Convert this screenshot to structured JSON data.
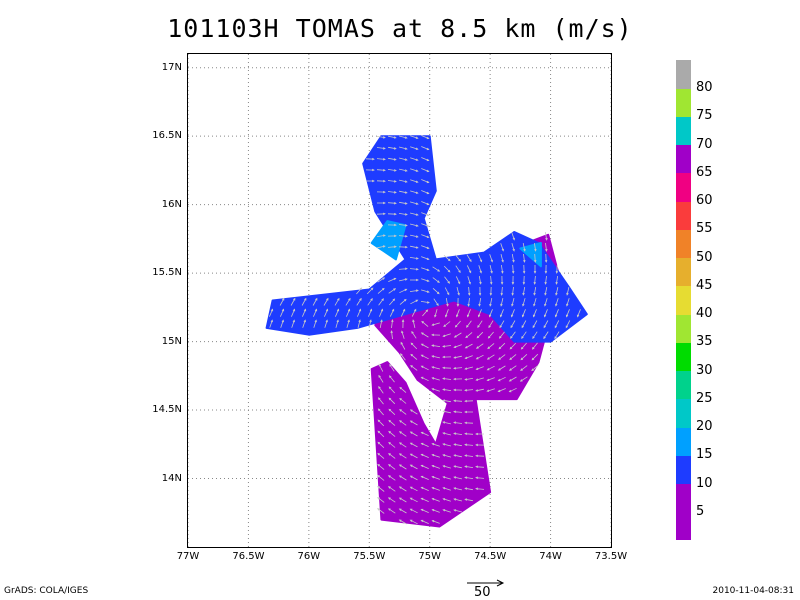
{
  "title": "101103H TOMAS at 8.5 km (m/s)",
  "map": {
    "lon_range": [
      -77.0,
      -73.5
    ],
    "lat_range": [
      13.5,
      17.1
    ],
    "lat_ticks": [
      {
        "value": 17.0,
        "label": "17N"
      },
      {
        "value": 16.5,
        "label": "16.5N"
      },
      {
        "value": 16.0,
        "label": "16N"
      },
      {
        "value": 15.5,
        "label": "15.5N"
      },
      {
        "value": 15.0,
        "label": "15N"
      },
      {
        "value": 14.5,
        "label": "14.5N"
      },
      {
        "value": 14.0,
        "label": "14N"
      }
    ],
    "lon_ticks": [
      {
        "value": -77.0,
        "label": "77W"
      },
      {
        "value": -76.5,
        "label": "76.5W"
      },
      {
        "value": -76.0,
        "label": "76W"
      },
      {
        "value": -75.5,
        "label": "75.5W"
      },
      {
        "value": -75.0,
        "label": "75W"
      },
      {
        "value": -74.5,
        "label": "74.5W"
      },
      {
        "value": -74.0,
        "label": "74W"
      },
      {
        "value": -73.5,
        "label": "73.5W"
      }
    ],
    "grid": "dotted",
    "shaded_regions": [
      {
        "level": "5-10",
        "color": "#a000c8",
        "polygon": [
          [
            -75.48,
            14.8
          ],
          [
            -75.4,
            13.7
          ],
          [
            -74.92,
            13.65
          ],
          [
            -74.5,
            13.9
          ],
          [
            -74.62,
            14.58
          ],
          [
            -74.28,
            14.58
          ],
          [
            -74.1,
            14.85
          ],
          [
            -74.0,
            15.18
          ],
          [
            -73.9,
            15.38
          ],
          [
            -74.02,
            15.78
          ],
          [
            -74.2,
            15.72
          ],
          [
            -74.42,
            15.62
          ],
          [
            -74.75,
            15.55
          ],
          [
            -75.0,
            15.45
          ],
          [
            -75.35,
            15.42
          ],
          [
            -75.45,
            15.12
          ],
          [
            -75.25,
            14.92
          ],
          [
            -75.1,
            14.72
          ],
          [
            -74.85,
            14.55
          ],
          [
            -74.95,
            14.25
          ],
          [
            -75.05,
            14.4
          ],
          [
            -75.2,
            14.7
          ],
          [
            -75.35,
            14.85
          ]
        ]
      },
      {
        "level": "10-15",
        "color": "#1e3cff",
        "polygon": [
          [
            -76.3,
            15.3
          ],
          [
            -75.5,
            15.38
          ],
          [
            -75.2,
            15.6
          ],
          [
            -75.45,
            15.95
          ],
          [
            -75.55,
            16.3
          ],
          [
            -75.4,
            16.5
          ],
          [
            -75.0,
            16.5
          ],
          [
            -74.95,
            16.1
          ],
          [
            -75.05,
            15.9
          ],
          [
            -74.95,
            15.6
          ],
          [
            -74.55,
            15.65
          ],
          [
            -74.3,
            15.8
          ],
          [
            -74.1,
            15.72
          ],
          [
            -73.85,
            15.4
          ],
          [
            -73.7,
            15.2
          ],
          [
            -74.0,
            15.0
          ],
          [
            -74.3,
            15.0
          ],
          [
            -74.5,
            15.2
          ],
          [
            -74.8,
            15.3
          ],
          [
            -75.2,
            15.2
          ],
          [
            -75.6,
            15.1
          ],
          [
            -76.0,
            15.05
          ],
          [
            -76.35,
            15.1
          ]
        ]
      },
      {
        "level": "15-20",
        "color": "#00a0ff",
        "polygon": [
          [
            -75.48,
            15.72
          ],
          [
            -75.28,
            15.6
          ],
          [
            -75.2,
            15.85
          ],
          [
            -75.35,
            15.88
          ]
        ]
      },
      {
        "level": "15-20",
        "color": "#00a0ff",
        "polygon": [
          [
            -74.25,
            15.68
          ],
          [
            -74.08,
            15.55
          ],
          [
            -74.08,
            15.72
          ]
        ]
      }
    ],
    "wind_vector_region": "arrows drawn over shaded regions"
  },
  "colorbar": {
    "segments": [
      {
        "color": "#a000c8",
        "label": "5"
      },
      {
        "color": "#a000c8",
        "label": "10"
      },
      {
        "color": "#1e3cff",
        "label": "15"
      },
      {
        "color": "#00a0ff",
        "label": "20"
      },
      {
        "color": "#00c8c8",
        "label": "25"
      },
      {
        "color": "#00d28c",
        "label": "30"
      },
      {
        "color": "#00dc00",
        "label": "35"
      },
      {
        "color": "#a0e632",
        "label": "40"
      },
      {
        "color": "#e6dc32",
        "label": "45"
      },
      {
        "color": "#e6af2d",
        "label": "50"
      },
      {
        "color": "#f08228",
        "label": "55"
      },
      {
        "color": "#fa3c3c",
        "label": "60"
      },
      {
        "color": "#f00082",
        "label": "65"
      },
      {
        "color": "#a000c8",
        "label": "70"
      },
      {
        "color": "#00c8c8",
        "label": "75"
      },
      {
        "color": "#a0e632",
        "label": "80"
      },
      {
        "color": "#aaaaaa",
        "label": ""
      }
    ]
  },
  "reference_vector": {
    "label": "50"
  },
  "footer": {
    "left": "GrADS: COLA/IGES",
    "right": "2010-11-04-08:31"
  }
}
